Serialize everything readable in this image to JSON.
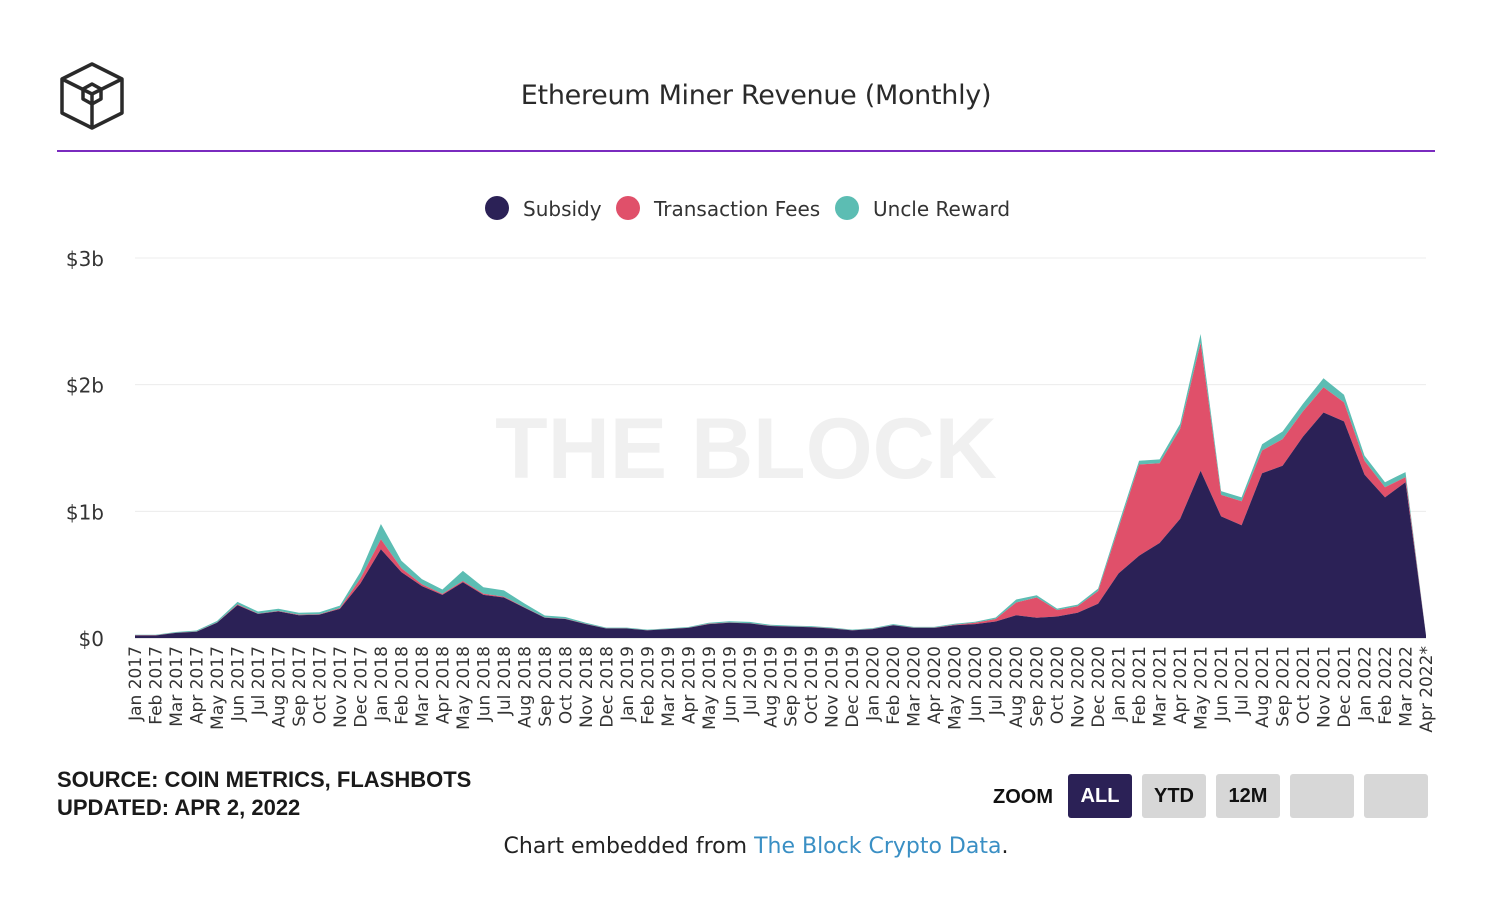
{
  "header": {
    "title": "Ethereum Miner Revenue (Monthly)"
  },
  "colors": {
    "subsidy": "#2b2156",
    "fees": "#e0506a",
    "uncle": "#5cbdb3",
    "accent_rule": "#7a2bbf",
    "active_button": "#2b2156"
  },
  "chart_data": {
    "type": "area",
    "stacked": true,
    "watermark": "THE BLOCK",
    "legend_position": "top-center",
    "grid": true,
    "ylim": [
      0,
      3000000000
    ],
    "y_ticks": [
      {
        "value": 0,
        "label": "$0"
      },
      {
        "value": 1000000000,
        "label": "$1b"
      },
      {
        "value": 2000000000,
        "label": "$2b"
      },
      {
        "value": 3000000000,
        "label": "$3b"
      }
    ],
    "categories": [
      "Jan 2017",
      "Feb 2017",
      "Mar 2017",
      "Apr 2017",
      "May 2017",
      "Jun 2017",
      "Jul 2017",
      "Aug 2017",
      "Sep 2017",
      "Oct 2017",
      "Nov 2017",
      "Dec 2017",
      "Jan 2018",
      "Feb 2018",
      "Mar 2018",
      "Apr 2018",
      "May 2018",
      "Jun 2018",
      "Jul 2018",
      "Aug 2018",
      "Sep 2018",
      "Oct 2018",
      "Nov 2018",
      "Dec 2018",
      "Jan 2019",
      "Feb 2019",
      "Mar 2019",
      "Apr 2019",
      "May 2019",
      "Jun 2019",
      "Jul 2019",
      "Aug 2019",
      "Sep 2019",
      "Oct 2019",
      "Nov 2019",
      "Dec 2019",
      "Jan 2020",
      "Feb 2020",
      "Mar 2020",
      "Apr 2020",
      "May 2020",
      "Jun 2020",
      "Jul 2020",
      "Aug 2020",
      "Sep 2020",
      "Oct 2020",
      "Nov 2020",
      "Dec 2020",
      "Jan 2021",
      "Feb 2021",
      "Mar 2021",
      "Apr 2021",
      "May 2021",
      "Jun 2021",
      "Jul 2021",
      "Aug 2021",
      "Sep 2021",
      "Oct 2021",
      "Nov 2021",
      "Dec 2021",
      "Jan 2022",
      "Feb 2022",
      "Mar 2022",
      "Apr 2022*"
    ],
    "series": [
      {
        "name": "Subsidy",
        "values": [
          20,
          20,
          40,
          50,
          120,
          260,
          190,
          210,
          180,
          185,
          230,
          430,
          700,
          520,
          410,
          340,
          440,
          340,
          320,
          240,
          160,
          150,
          110,
          75,
          75,
          60,
          70,
          80,
          110,
          120,
          115,
          95,
          90,
          85,
          75,
          60,
          70,
          100,
          80,
          80,
          100,
          110,
          130,
          180,
          160,
          170,
          200,
          270,
          510,
          650,
          750,
          940,
          1320,
          960,
          890,
          1300,
          1360,
          1590,
          1780,
          1710,
          1290,
          1110,
          1230,
          20
        ]
      },
      {
        "name": "Transaction Fees",
        "values": [
          1,
          1,
          1,
          1,
          2,
          5,
          3,
          3,
          3,
          3,
          6,
          40,
          80,
          30,
          15,
          8,
          10,
          10,
          6,
          3,
          2,
          2,
          1,
          1,
          1,
          1,
          1,
          1,
          2,
          2,
          2,
          1,
          1,
          2,
          2,
          1,
          2,
          2,
          2,
          2,
          5,
          10,
          20,
          100,
          160,
          50,
          50,
          100,
          360,
          720,
          630,
          710,
          1010,
          170,
          190,
          180,
          210,
          200,
          200,
          150,
          110,
          80,
          40,
          2
        ]
      },
      {
        "name": "Uncle Reward",
        "values": [
          4,
          4,
          6,
          8,
          12,
          20,
          16,
          18,
          16,
          16,
          20,
          50,
          120,
          60,
          40,
          35,
          80,
          50,
          50,
          30,
          16,
          14,
          10,
          6,
          6,
          5,
          5,
          6,
          8,
          10,
          10,
          8,
          7,
          7,
          6,
          5,
          6,
          8,
          6,
          6,
          8,
          8,
          12,
          24,
          18,
          12,
          14,
          20,
          30,
          30,
          30,
          40,
          70,
          30,
          30,
          50,
          60,
          60,
          70,
          60,
          40,
          40,
          40,
          4
        ]
      }
    ],
    "value_unit": "millions USD"
  },
  "footer": {
    "source": "SOURCE: COIN METRICS, FLASHBOTS",
    "updated": "UPDATED: APR 2, 2022",
    "embed_prefix": "Chart embedded from ",
    "embed_link": "The Block Crypto Data",
    "embed_suffix": "."
  },
  "zoom": {
    "label": "ZOOM",
    "buttons": [
      {
        "label": "ALL",
        "active": true
      },
      {
        "label": "YTD",
        "active": false
      },
      {
        "label": "12M",
        "active": false
      },
      {
        "label": "",
        "active": false
      },
      {
        "label": "",
        "active": false
      }
    ]
  }
}
